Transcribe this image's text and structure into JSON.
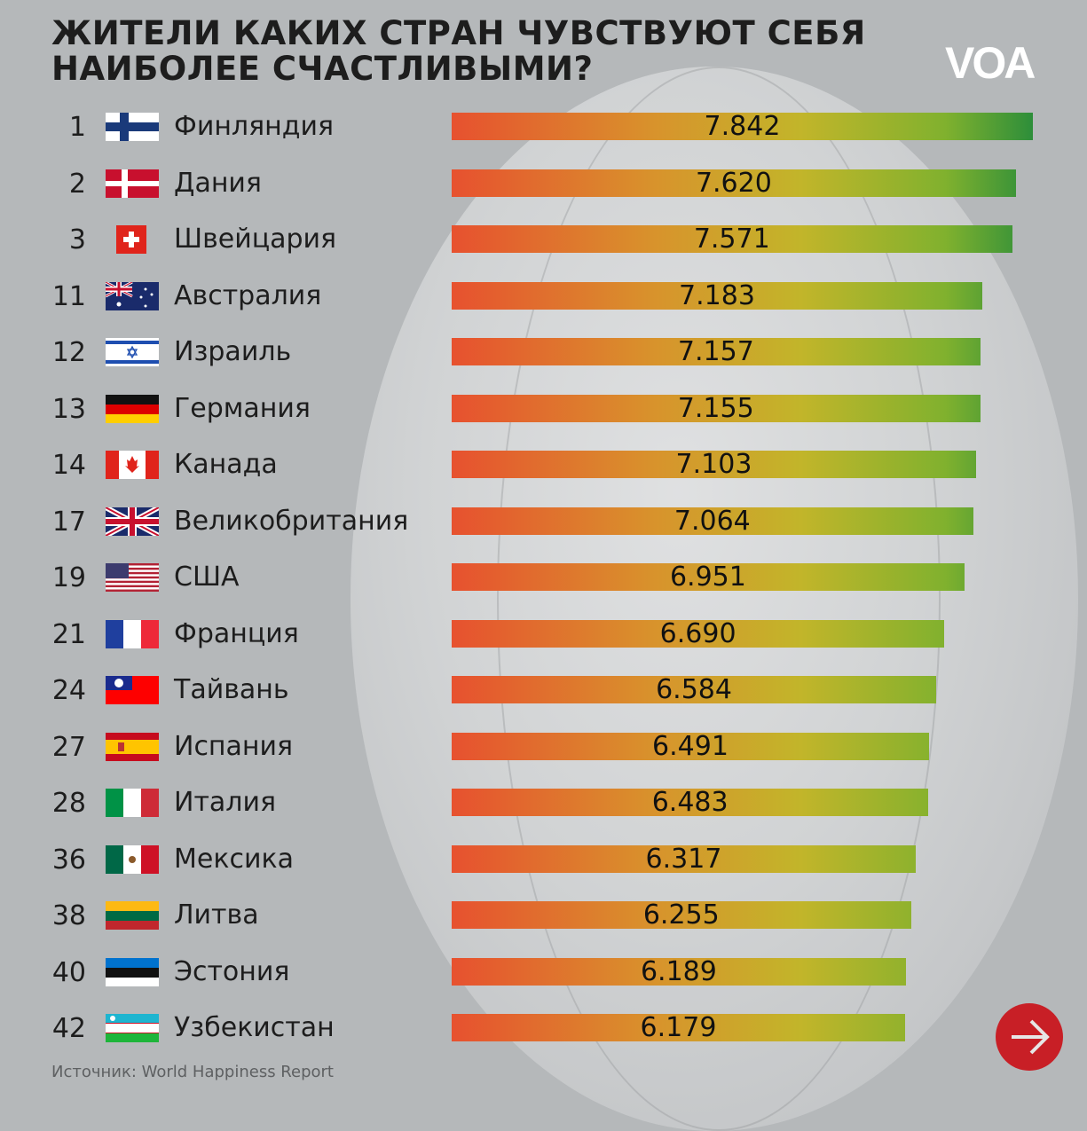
{
  "header": {
    "title_line1": "ЖИТЕЛИ КАКИХ СТРАН ЧУВСТВУЮТ СЕБЯ",
    "title_line2": "НАИБОЛЕЕ СЧАСТЛИВЫМИ?",
    "logo": "VOA"
  },
  "source": "Источник: World Happiness Report",
  "next_button": {
    "icon": "arrow-right-icon"
  },
  "colors": {
    "bar_start": "#e7512f",
    "bar_mid": "#d8932c",
    "bar_end": "#2d8e3a",
    "next": "#c81f26",
    "background": "#b5b8ba"
  },
  "chart_data": {
    "type": "bar",
    "orientation": "horizontal",
    "title": "ЖИТЕЛИ КАКИХ СТРАН ЧУВСТВУЮТ СЕБЯ НАИБОЛЕЕ СЧАСТЛИВЫМИ?",
    "xlabel": "",
    "ylabel": "",
    "categories": [
      "Финляндия",
      "Дания",
      "Швейцария",
      "Австралия",
      "Израиль",
      "Германия",
      "Канада",
      "Великобритания",
      "США",
      "Франция",
      "Тайвань",
      "Испания",
      "Италия",
      "Мексика",
      "Литва",
      "Эстония",
      "Узбекистан"
    ],
    "ranks": [
      "1",
      "2",
      "3",
      "11",
      "12",
      "13",
      "14",
      "17",
      "19",
      "21",
      "24",
      "27",
      "28",
      "36",
      "38",
      "40",
      "42"
    ],
    "flags": [
      "fi",
      "dk",
      "ch",
      "au",
      "il",
      "de",
      "ca",
      "gb",
      "us",
      "fr",
      "tw",
      "es",
      "it",
      "mx",
      "lt",
      "ee",
      "uz"
    ],
    "values": [
      7.842,
      7.62,
      7.571,
      7.183,
      7.157,
      7.155,
      7.103,
      7.064,
      6.951,
      6.69,
      6.584,
      6.491,
      6.483,
      6.317,
      6.255,
      6.189,
      6.179
    ],
    "labels": [
      "7.842",
      "7.620",
      "7.571",
      "7.183",
      "7.157",
      "7.155",
      "7.103",
      "7.064",
      "6.951",
      "6.690",
      "6.584",
      "6.491",
      "6.483",
      "6.317",
      "6.255",
      "6.189",
      "6.179"
    ]
  }
}
